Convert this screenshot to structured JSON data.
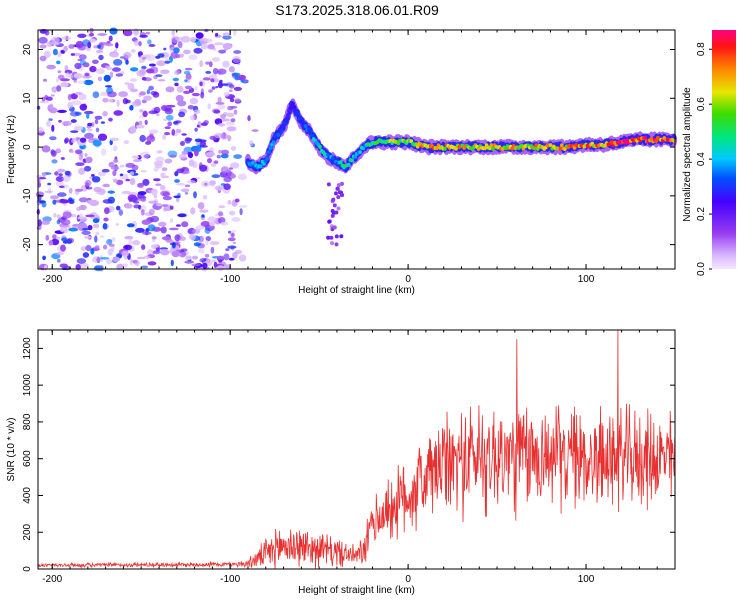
{
  "title": "S173.2025.318.06.01.R09",
  "chart_data": [
    {
      "type": "heatmap",
      "xlabel": "Height of straight line (km)",
      "ylabel": "Frequency (Hz)",
      "xlim": [
        -208,
        150
      ],
      "ylim": [
        -25,
        24
      ],
      "x_ticks": [
        -200,
        -100,
        0,
        100
      ],
      "x_tick_labels": [
        "-200",
        "-100",
        "0",
        "100"
      ],
      "y_ticks": [
        -20,
        -10,
        0,
        10,
        20
      ],
      "y_tick_labels": [
        "-20",
        "-10",
        "0",
        "10",
        "20"
      ],
      "colorbar": {
        "label": "Normalized spectral amplitude",
        "range": [
          0,
          0.87
        ],
        "ticks": [
          0.0,
          0.2,
          0.4,
          0.6,
          0.8
        ],
        "tick_labels": [
          "0.0",
          "0.2",
          "0.4",
          "0.6",
          "0.8"
        ]
      },
      "ridge": {
        "x": [
          -90,
          -85,
          -80,
          -75,
          -70,
          -65,
          -60,
          -55,
          -50,
          -45,
          -40,
          -35,
          -30,
          -25,
          -20,
          -10,
          0,
          10,
          20,
          30,
          40,
          50,
          60,
          70,
          80,
          90,
          100,
          110,
          120,
          130,
          140,
          150
        ],
        "frequency": [
          -3,
          -4,
          -3,
          2,
          4,
          9,
          5,
          3,
          0,
          -2,
          -3,
          -4,
          -2,
          0,
          1,
          1,
          1,
          0,
          0,
          0,
          0,
          0,
          0,
          0,
          0,
          0,
          0.5,
          0.5,
          1,
          1.5,
          1.5,
          1.5
        ],
        "amplitude": [
          0.35,
          0.45,
          0.4,
          0.35,
          0.3,
          0.25,
          0.3,
          0.35,
          0.5,
          0.4,
          0.4,
          0.5,
          0.4,
          0.45,
          0.55,
          0.6,
          0.6,
          0.75,
          0.75,
          0.7,
          0.7,
          0.75,
          0.7,
          0.7,
          0.7,
          0.75,
          0.75,
          0.75,
          0.85,
          0.85,
          0.8,
          0.8
        ]
      }
    },
    {
      "type": "line",
      "xlabel": "Height of straight line (km)",
      "ylabel": "SNR (10 * v/v)",
      "xlim": [
        -208,
        150
      ],
      "ylim": [
        0,
        1300
      ],
      "x_ticks": [
        -200,
        -100,
        0,
        100
      ],
      "x_tick_labels": [
        "-200",
        "-100",
        "0",
        "100"
      ],
      "y_ticks": [
        0,
        200,
        400,
        600,
        800,
        1000,
        1200
      ],
      "y_tick_labels": [
        "0",
        "200",
        "400",
        "600",
        "800",
        "1000",
        "1200"
      ],
      "series": [
        {
          "name": "SNR",
          "color": "#e83030",
          "envelope_x": [
            -208,
            -100,
            -90,
            -80,
            -70,
            -60,
            -50,
            -40,
            -30,
            -25,
            -20,
            -10,
            0,
            10,
            20,
            40,
            60,
            80,
            100,
            120,
            140,
            150
          ],
          "envelope_mean": [
            20,
            25,
            30,
            80,
            130,
            120,
            110,
            90,
            70,
            90,
            250,
            330,
            400,
            500,
            560,
            620,
            600,
            620,
            600,
            600,
            600,
            600
          ],
          "envelope_spread": [
            12,
            15,
            25,
            90,
            140,
            120,
            110,
            90,
            60,
            100,
            150,
            200,
            250,
            280,
            300,
            350,
            350,
            300,
            300,
            300,
            280,
            280
          ],
          "peaks": [
            {
              "x": 61,
              "y": 1250
            },
            {
              "x": 118,
              "y": 1300
            }
          ]
        }
      ]
    }
  ]
}
